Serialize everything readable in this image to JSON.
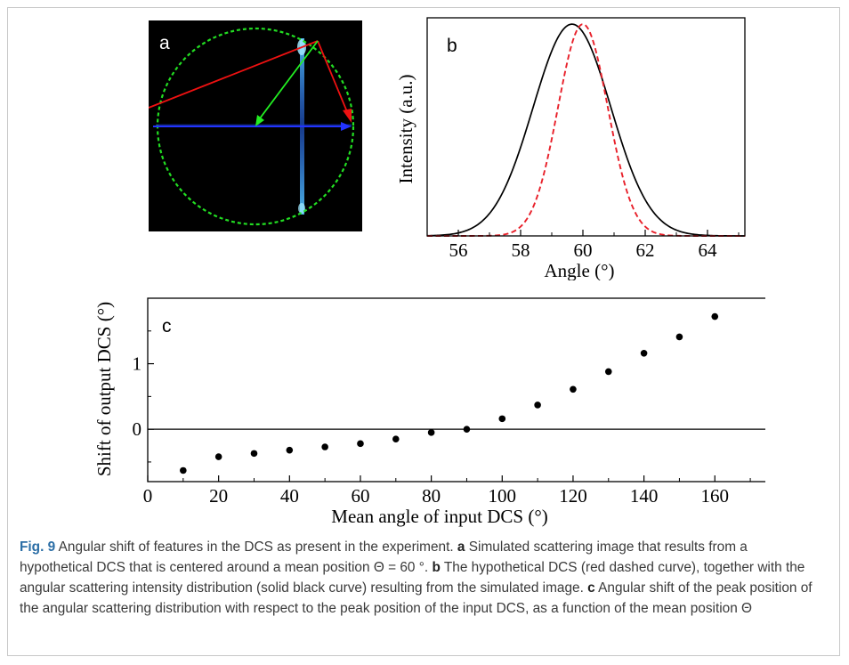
{
  "panel_a": {
    "label": "a",
    "colors": {
      "circle": "#22dd22",
      "ray_red": "#ee1111",
      "ray_green": "#22ee22",
      "ray_blue": "#2233ff",
      "glow": "#3fa8ff"
    }
  },
  "chart_data": [
    {
      "type": "line",
      "panel_label": "b",
      "title": "",
      "xlabel": "Angle (°)",
      "ylabel": "Intensity (a.u.)",
      "xlim": [
        55,
        65.2
      ],
      "ylim": [
        0,
        1.03
      ],
      "xticks": [
        56,
        58,
        60,
        62,
        64
      ],
      "grid": false,
      "series": [
        {
          "style": "solid",
          "color": "#000000",
          "center": 59.65,
          "sigma": 1.25,
          "x": [
            55,
            56,
            57,
            58,
            59,
            59.65,
            60,
            61,
            62,
            63,
            64,
            65
          ],
          "y": [
            0.001,
            0.014,
            0.106,
            0.417,
            0.874,
            1.0,
            0.962,
            0.555,
            0.17,
            0.027,
            0.002,
            0.0001
          ]
        },
        {
          "style": "dashed",
          "color": "#e8202a",
          "center": 60.0,
          "sigma": 0.8,
          "x": [
            57,
            58,
            59,
            59.5,
            60,
            60.5,
            61,
            62,
            63
          ],
          "y": [
            0.001,
            0.044,
            0.458,
            0.823,
            1.0,
            0.823,
            0.458,
            0.044,
            0.001
          ]
        }
      ]
    },
    {
      "type": "scatter",
      "panel_label": "c",
      "title": "",
      "xlabel": "Mean angle of input DCS (°)",
      "ylabel": "Shift of output DCS (°)",
      "xlim": [
        0,
        175
      ],
      "ylim": [
        -0.8,
        2.0
      ],
      "xticks": [
        0,
        20,
        40,
        60,
        80,
        100,
        120,
        140,
        160
      ],
      "yticks": [
        0,
        1
      ],
      "zero_line": true,
      "grid": false,
      "x": [
        10,
        20,
        30,
        40,
        50,
        60,
        70,
        80,
        90,
        100,
        110,
        120,
        130,
        140,
        150,
        160
      ],
      "y": [
        -0.63,
        -0.42,
        -0.37,
        -0.32,
        -0.27,
        -0.22,
        -0.15,
        -0.05,
        0.0,
        0.16,
        0.37,
        0.61,
        0.88,
        1.16,
        1.41,
        1.72
      ]
    }
  ],
  "caption": {
    "fig_label": "Fig. 9",
    "text_1": "Angular shift of features in the DCS as present in the experiment.",
    "label_a": "a",
    "text_a": "Simulated scattering image that results from a hypothetical DCS that is centered around a mean position Θ = 60 °.",
    "label_b": "b",
    "text_b": "The hypothetical DCS (red dashed curve), together with the angular scattering intensity distribution (solid black curve) resulting from the simulated image.",
    "label_c": "c",
    "text_c": "Angular shift of the peak position of the angular scattering distribution with respect to the peak position of the input DCS, as a function of the mean position Θ"
  }
}
